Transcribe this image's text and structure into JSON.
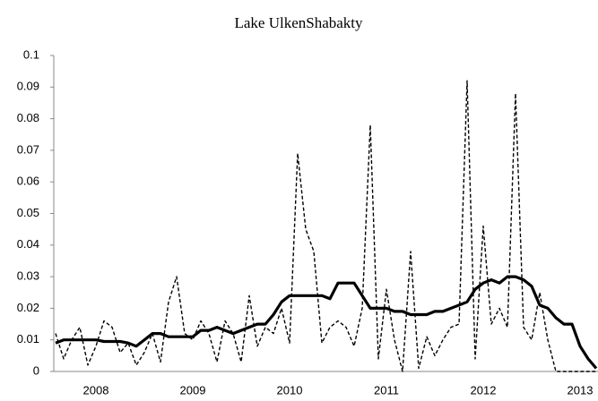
{
  "chart_data": {
    "type": "line",
    "title": "Lake UlkenShabakty",
    "categories": [
      null,
      null,
      null,
      null,
      null,
      "2008",
      null,
      null,
      null,
      null,
      null,
      null,
      null,
      null,
      null,
      null,
      null,
      "2009",
      null,
      null,
      null,
      null,
      null,
      null,
      null,
      null,
      null,
      null,
      null,
      "2010",
      null,
      null,
      null,
      null,
      null,
      null,
      null,
      null,
      null,
      null,
      null,
      "2011",
      null,
      null,
      null,
      null,
      null,
      null,
      null,
      null,
      null,
      null,
      null,
      "2012",
      null,
      null,
      null,
      null,
      null,
      null,
      null,
      null,
      null,
      null,
      null,
      "2013",
      null,
      null
    ],
    "series": [
      {
        "color": "#000000",
        "style": "dashed",
        "values": [
          0.012,
          0.004,
          0.01,
          0.014,
          0.002,
          0.008,
          0.016,
          0.014,
          0.006,
          0.009,
          0.002,
          0.006,
          0.012,
          0.003,
          0.022,
          0.03,
          0.012,
          0.01,
          0.016,
          0.012,
          0.003,
          0.016,
          0.012,
          0.003,
          0.024,
          0.008,
          0.014,
          0.012,
          0.02,
          0.009,
          0.069,
          0.045,
          0.038,
          0.009,
          0.014,
          0.016,
          0.014,
          0.008,
          0.02,
          0.078,
          0.004,
          0.026,
          0.01,
          0,
          0.038,
          0.001,
          0.011,
          0.005,
          0.01,
          0.014,
          0.015,
          0.092,
          0.004,
          0.046,
          0.015,
          0.02,
          0.014,
          0.088,
          0.014,
          0.01,
          0.025,
          0.01,
          0,
          0,
          0,
          0,
          0,
          0
        ]
      },
      {
        "color": "#000000",
        "style": "solid",
        "values": [
          0.009,
          0.01,
          0.01,
          0.01,
          0.01,
          0.01,
          0.0095,
          0.0095,
          0.0095,
          0.009,
          0.008,
          0.01,
          0.012,
          0.012,
          0.011,
          0.011,
          0.011,
          0.011,
          0.013,
          0.013,
          0.014,
          0.013,
          0.012,
          0.013,
          0.014,
          0.015,
          0.015,
          0.018,
          0.022,
          0.024,
          0.024,
          0.024,
          0.024,
          0.024,
          0.023,
          0.028,
          0.028,
          0.028,
          0.024,
          0.02,
          0.02,
          0.02,
          0.019,
          0.019,
          0.018,
          0.018,
          0.018,
          0.019,
          0.019,
          0.02,
          0.021,
          0.022,
          0.026,
          0.028,
          0.029,
          0.028,
          0.03,
          0.03,
          0.029,
          0.027,
          0.021,
          0.02,
          0.017,
          0.015,
          0.015,
          0.008,
          0.004,
          0.001
        ]
      }
    ],
    "ylim": [
      0,
      0.1
    ],
    "yticks": [
      0,
      0.01,
      0.02,
      0.03,
      0.04,
      0.05,
      0.06,
      0.07,
      0.08,
      0.09,
      0.1
    ],
    "grid": false
  }
}
